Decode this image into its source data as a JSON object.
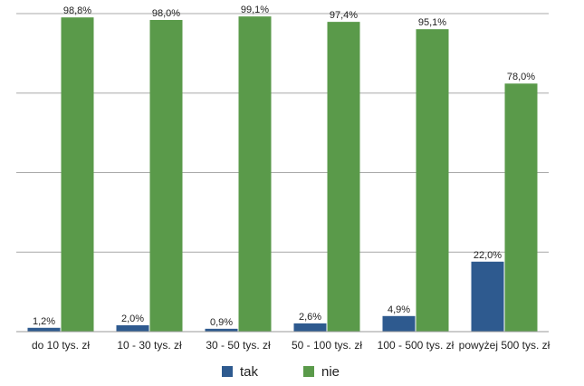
{
  "chart_data": {
    "type": "bar",
    "title": "",
    "xlabel": "",
    "ylabel": "",
    "ylim": [
      0,
      100
    ],
    "grid": true,
    "legend_position": "bottom",
    "categories": [
      "do 10 tys. zł",
      "10 - 30 tys. zł",
      "30 - 50 tys. zł",
      "50 - 100 tys. zł",
      "100 - 500 tys. zł",
      "powyżej 500 tys. zł"
    ],
    "series": [
      {
        "name": "tak",
        "color": "#2e5a8f",
        "values": [
          1.2,
          2.0,
          0.9,
          2.6,
          4.9,
          22.0
        ],
        "labels": [
          "1,2%",
          "2,0%",
          "0,9%",
          "2,6%",
          "4,9%",
          "22,0%"
        ]
      },
      {
        "name": "nie",
        "color": "#5a9a4a",
        "values": [
          98.8,
          98.0,
          99.1,
          97.4,
          95.1,
          78.0
        ],
        "labels": [
          "98,8%",
          "98,0%",
          "99,1%",
          "97,4%",
          "95,1%",
          "78,0%"
        ]
      }
    ]
  }
}
